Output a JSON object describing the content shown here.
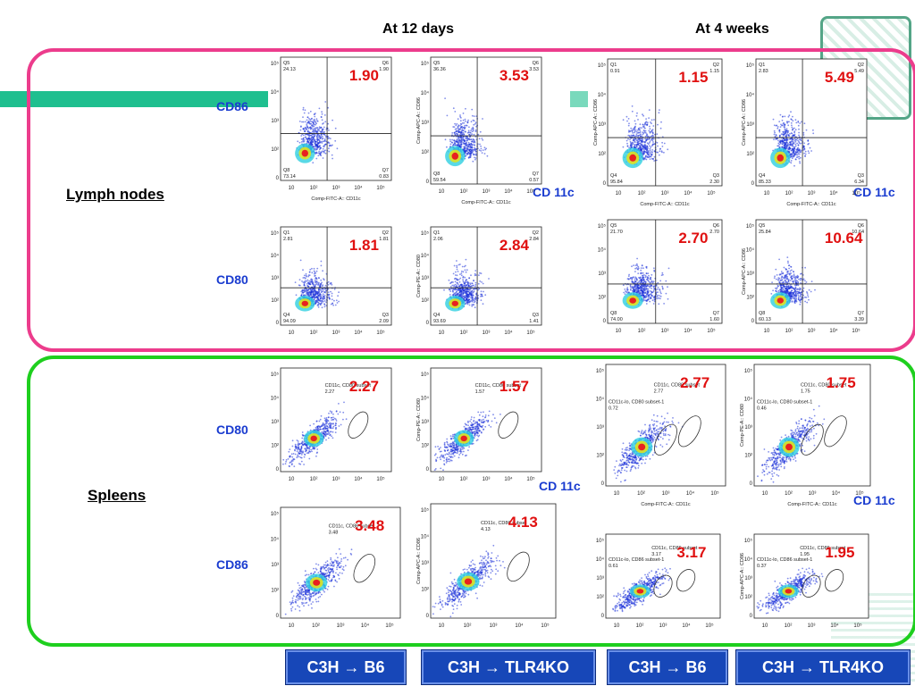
{
  "headers": {
    "left": "At 12 days",
    "right": "At 4 weeks"
  },
  "tissues": {
    "lymph": "Lymph nodes",
    "spleen": "Spleens"
  },
  "markers": {
    "cd86": "CD86",
    "cd80": "CD80",
    "cd11c": "CD 11c"
  },
  "groups": [
    "C3H → B6",
    "C3H → TLR4KO",
    "C3H → B6",
    "C3H → TLR4KO"
  ],
  "colors": {
    "lymph_border": "#ec3c8c",
    "spleen_border": "#1ecf1e",
    "percent_text": "#e01010",
    "marker_text": "#1a3cd0",
    "button_bg": "#1747b8"
  },
  "chart_data": [
    {
      "type": "scatter",
      "panel": "Lymph nodes / CD86 / 12 days / C3H → B6",
      "highlight": "1.90",
      "ylabel": "",
      "xlabel": "Comp-FITC-A:: CD11c",
      "gate": "quadrant",
      "quadrants": {
        "UL": "Q5 24.13",
        "UR": "Q6 1.90",
        "LL": "Q8 73.14",
        "LR": "Q7 0.83"
      }
    },
    {
      "type": "scatter",
      "panel": "Lymph nodes / CD86 / 12 days / C3H → TLR4KO",
      "highlight": "3.53",
      "ylabel": "Comp-APC-A:: CD86",
      "xlabel": "Comp-FITC-A:: CD11c",
      "gate": "quadrant",
      "quadrants": {
        "UL": "Q5 36.36",
        "UR": "Q6 3.53",
        "LL": "Q8 59.54",
        "LR": "Q7 0.57"
      }
    },
    {
      "type": "scatter",
      "panel": "Lymph nodes / CD86 / 4 weeks / C3H → B6",
      "highlight": "1.15",
      "ylabel": "Comp-APC-A:: CD86",
      "xlabel": "Comp-FITC-A:: CD11c",
      "gate": "quadrant",
      "quadrants": {
        "UL": "Q1 0.91",
        "UR": "Q2 1.15",
        "LL": "Q4 95.84",
        "LR": "Q3 2.30"
      }
    },
    {
      "type": "scatter",
      "panel": "Lymph nodes / CD86 / 4 weeks / C3H → TLR4KO",
      "highlight": "5.49",
      "ylabel": "Comp-APC-A:: CD86",
      "xlabel": "Comp-FITC-A:: CD11c",
      "gate": "quadrant",
      "quadrants": {
        "UL": "Q1 2.83",
        "UR": "Q2 5.49",
        "LL": "Q4 85.33",
        "LR": "Q3 6.34"
      }
    },
    {
      "type": "scatter",
      "panel": "Lymph nodes / CD80 / 12 days / C3H → B6",
      "highlight": "1.81",
      "ylabel": "",
      "xlabel": "",
      "gate": "quadrant",
      "quadrants": {
        "UL": "Q1 2.81",
        "UR": "Q2 1.81",
        "LL": "Q4 94.09",
        "LR": "Q3 2.09"
      }
    },
    {
      "type": "scatter",
      "panel": "Lymph nodes / CD80 / 12 days / C3H → TLR4KO",
      "highlight": "2.84",
      "ylabel": "Comp-PE-A:: CD80",
      "xlabel": "",
      "gate": "quadrant",
      "quadrants": {
        "UL": "Q1 2.06",
        "UR": "Q2 2.84",
        "LL": "Q4 93.69",
        "LR": "Q3 1.41"
      }
    },
    {
      "type": "scatter",
      "panel": "Lymph nodes / CD80 / 4 weeks / C3H → B6",
      "highlight": "2.70",
      "ylabel": "",
      "xlabel": "",
      "gate": "quadrant",
      "quadrants": {
        "UL": "Q5 21.70",
        "UR": "Q6 2.70",
        "LL": "Q8 74.00",
        "LR": "Q7 1.60"
      }
    },
    {
      "type": "scatter",
      "panel": "Lymph nodes / CD80 / 4 weeks / C3H → TLR4KO",
      "highlight": "10.64",
      "ylabel": "Comp-APC-A:: CD86",
      "xlabel": "",
      "gate": "quadrant",
      "quadrants": {
        "UL": "Q5 25.84",
        "UR": "Q6 10.64",
        "LL": "Q8 60.13",
        "LR": "Q7 3.39"
      }
    },
    {
      "type": "scatter",
      "panel": "Spleens / CD80 / 12 days / C3H → B6",
      "highlight": "2.27",
      "ylabel": "",
      "xlabel": "",
      "gate": "ellipse",
      "gate_label": "CD11c, CD80 subset",
      "gate_value": "2.27"
    },
    {
      "type": "scatter",
      "panel": "Spleens / CD80 / 12 days / C3H → TLR4KO",
      "highlight": "1.57",
      "ylabel": "Comp-PE-A:: CD80",
      "xlabel": "",
      "gate": "ellipse",
      "gate_label": "CD11c, CD80 subset",
      "gate_value": "1.57"
    },
    {
      "type": "scatter",
      "panel": "Spleens / CD80 / 4 weeks / C3H → B6",
      "highlight": "2.77",
      "ylabel": "",
      "xlabel": "Comp-FITC-A:: CD11c",
      "gate": "ellipse",
      "gate_label": "CD11c, CD80 subset",
      "gate_value": "2.77",
      "gate2_label": "CD11c-lo, CD80 subset-1",
      "gate2_value": "0.72"
    },
    {
      "type": "scatter",
      "panel": "Spleens / CD80 / 4 weeks / C3H → TLR4KO",
      "highlight": "1.75",
      "ylabel": "Comp-PE-A:: CD80",
      "xlabel": "Comp-FITC-A:: CD11c",
      "gate": "ellipse",
      "gate_label": "CD11c, CD80 subset",
      "gate_value": "1.75",
      "gate2_label": "CD11c-lo, CD80 subset-1",
      "gate2_value": "0.46"
    },
    {
      "type": "scatter",
      "panel": "Spleens / CD86 / 12 days / C3H → B6",
      "highlight": "3.48",
      "ylabel": "",
      "xlabel": "",
      "gate": "ellipse",
      "gate_label": "CD11c, CD86 subset",
      "gate_value": "3.48"
    },
    {
      "type": "scatter",
      "panel": "Spleens / CD86 / 12 days / C3H → TLR4KO",
      "highlight": "4.13",
      "ylabel": "Comp-APC-A:: CD86",
      "xlabel": "",
      "gate": "ellipse",
      "gate_label": "CD11c, CD86 subset",
      "gate_value": "4.13"
    },
    {
      "type": "scatter",
      "panel": "Spleens / CD86 / 4 weeks / C3H → B6",
      "highlight": "3.17",
      "ylabel": "",
      "xlabel": "",
      "gate": "ellipse",
      "gate_label": "CD11c, CD86 subset",
      "gate_value": "3.17",
      "gate2_label": "CD11c-lo, CD86 subset-1",
      "gate2_value": "0.61"
    },
    {
      "type": "scatter",
      "panel": "Spleens / CD86 / 4 weeks / C3H → TLR4KO",
      "highlight": "1.95",
      "ylabel": "Comp-APC-A:: CD86",
      "xlabel": "",
      "gate": "ellipse",
      "gate_label": "CD11c, CD86 subset",
      "gate_value": "1.95",
      "gate2_label": "CD11c-lo, CD86 subset-1",
      "gate2_value": "0.37"
    }
  ]
}
